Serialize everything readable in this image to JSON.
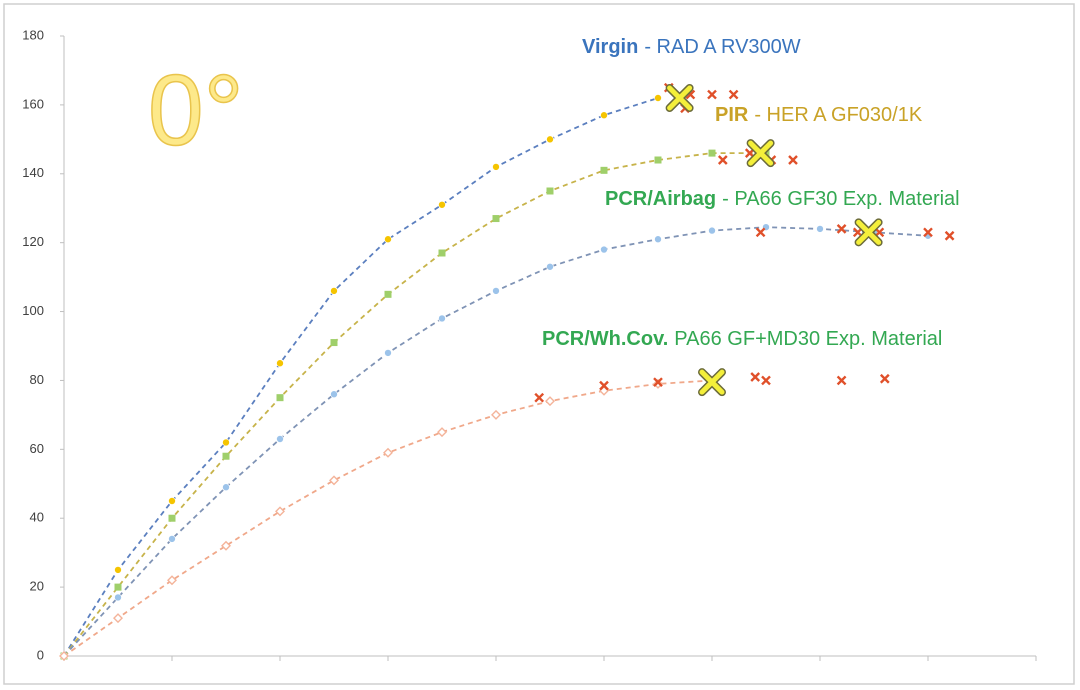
{
  "chart_data": {
    "type": "line",
    "panel_label": "0°",
    "annotations": [
      {
        "bold": "Virgin",
        "text": "- RAD A RV300W",
        "color": "#3a74bd"
      },
      {
        "bold": "PIR",
        "text": "- HER A GF030/1K",
        "color": "#c9a227"
      },
      {
        "bold": "PCR/Airbag",
        "text": "- PA66 GF30 Exp. Material",
        "color": "#33a852"
      },
      {
        "bold": "PCR/Wh.Cov.",
        "text": "PA66 GF+MD30 Exp. Material",
        "color": "#33a852"
      }
    ],
    "xlim": [
      0,
      9
    ],
    "xticks": [
      0,
      1,
      2,
      3,
      4,
      5,
      6,
      7,
      8,
      9
    ],
    "ylim": [
      0,
      180
    ],
    "yticks": [
      0,
      20,
      40,
      60,
      80,
      100,
      120,
      140,
      160,
      180
    ],
    "series": [
      {
        "color": "#5b7fbf",
        "marker": "circle",
        "marker_color": "#f5c400",
        "x": [
          0,
          0.5,
          1,
          1.5,
          2,
          2.5,
          3,
          3.5,
          4,
          4.5,
          5,
          5.5
        ],
        "values": [
          0,
          25,
          45,
          62,
          85,
          106,
          121,
          131,
          142,
          150,
          157,
          162
        ]
      },
      {
        "color": "#c7b34a",
        "marker": "square",
        "marker_color": "#9fcf6a",
        "x": [
          0,
          0.5,
          1,
          1.5,
          2,
          2.5,
          3,
          3.5,
          4,
          4.5,
          5,
          5.5,
          6,
          6.5
        ],
        "values": [
          0,
          20,
          40,
          58,
          75,
          91,
          105,
          117,
          127,
          135,
          141,
          144,
          146,
          146
        ]
      },
      {
        "color": "#7f93b5",
        "marker": "circle",
        "marker_color": "#9cc3ea",
        "x": [
          0,
          0.5,
          1,
          1.5,
          2,
          2.5,
          3,
          3.5,
          4,
          4.5,
          5,
          5.5,
          6,
          6.5,
          7,
          7.5,
          8
        ],
        "values": [
          0,
          17,
          34,
          49,
          63,
          76,
          88,
          98,
          106,
          113,
          118,
          121,
          123.5,
          124.5,
          124,
          123,
          122
        ]
      },
      {
        "color": "#f0a88a",
        "marker": "diamond",
        "marker_color": "#f4b49a",
        "x": [
          0,
          0.5,
          1,
          1.5,
          2,
          2.5,
          3,
          3.5,
          4,
          4.5,
          5,
          5.5,
          6
        ],
        "values": [
          0,
          11,
          22,
          32,
          42,
          51,
          59,
          65,
          70,
          74,
          77,
          79,
          80
        ]
      },
      {
        "color": "#e0502a",
        "marker": "x",
        "line": false,
        "x": [
          5.6,
          5.8,
          6.0,
          6.2,
          5.75,
          6.1,
          6.35,
          6.55,
          6.75,
          6.45,
          7.2,
          7.35,
          7.55,
          8.0,
          8.2,
          4.4,
          5.0,
          5.5,
          6.4,
          6.5,
          7.2,
          7.6
        ],
        "values": [
          165,
          163,
          163,
          163,
          159,
          144,
          146,
          144,
          144,
          123,
          124,
          123,
          123,
          123,
          122,
          75,
          78.5,
          79.5,
          81,
          80,
          80,
          80.5
        ]
      },
      {
        "color": "#f4ef3a",
        "marker": "x-large",
        "line": false,
        "x": [
          5.7,
          6.45,
          7.45,
          6.0
        ],
        "values": [
          162,
          146,
          123,
          79.5
        ]
      }
    ]
  }
}
